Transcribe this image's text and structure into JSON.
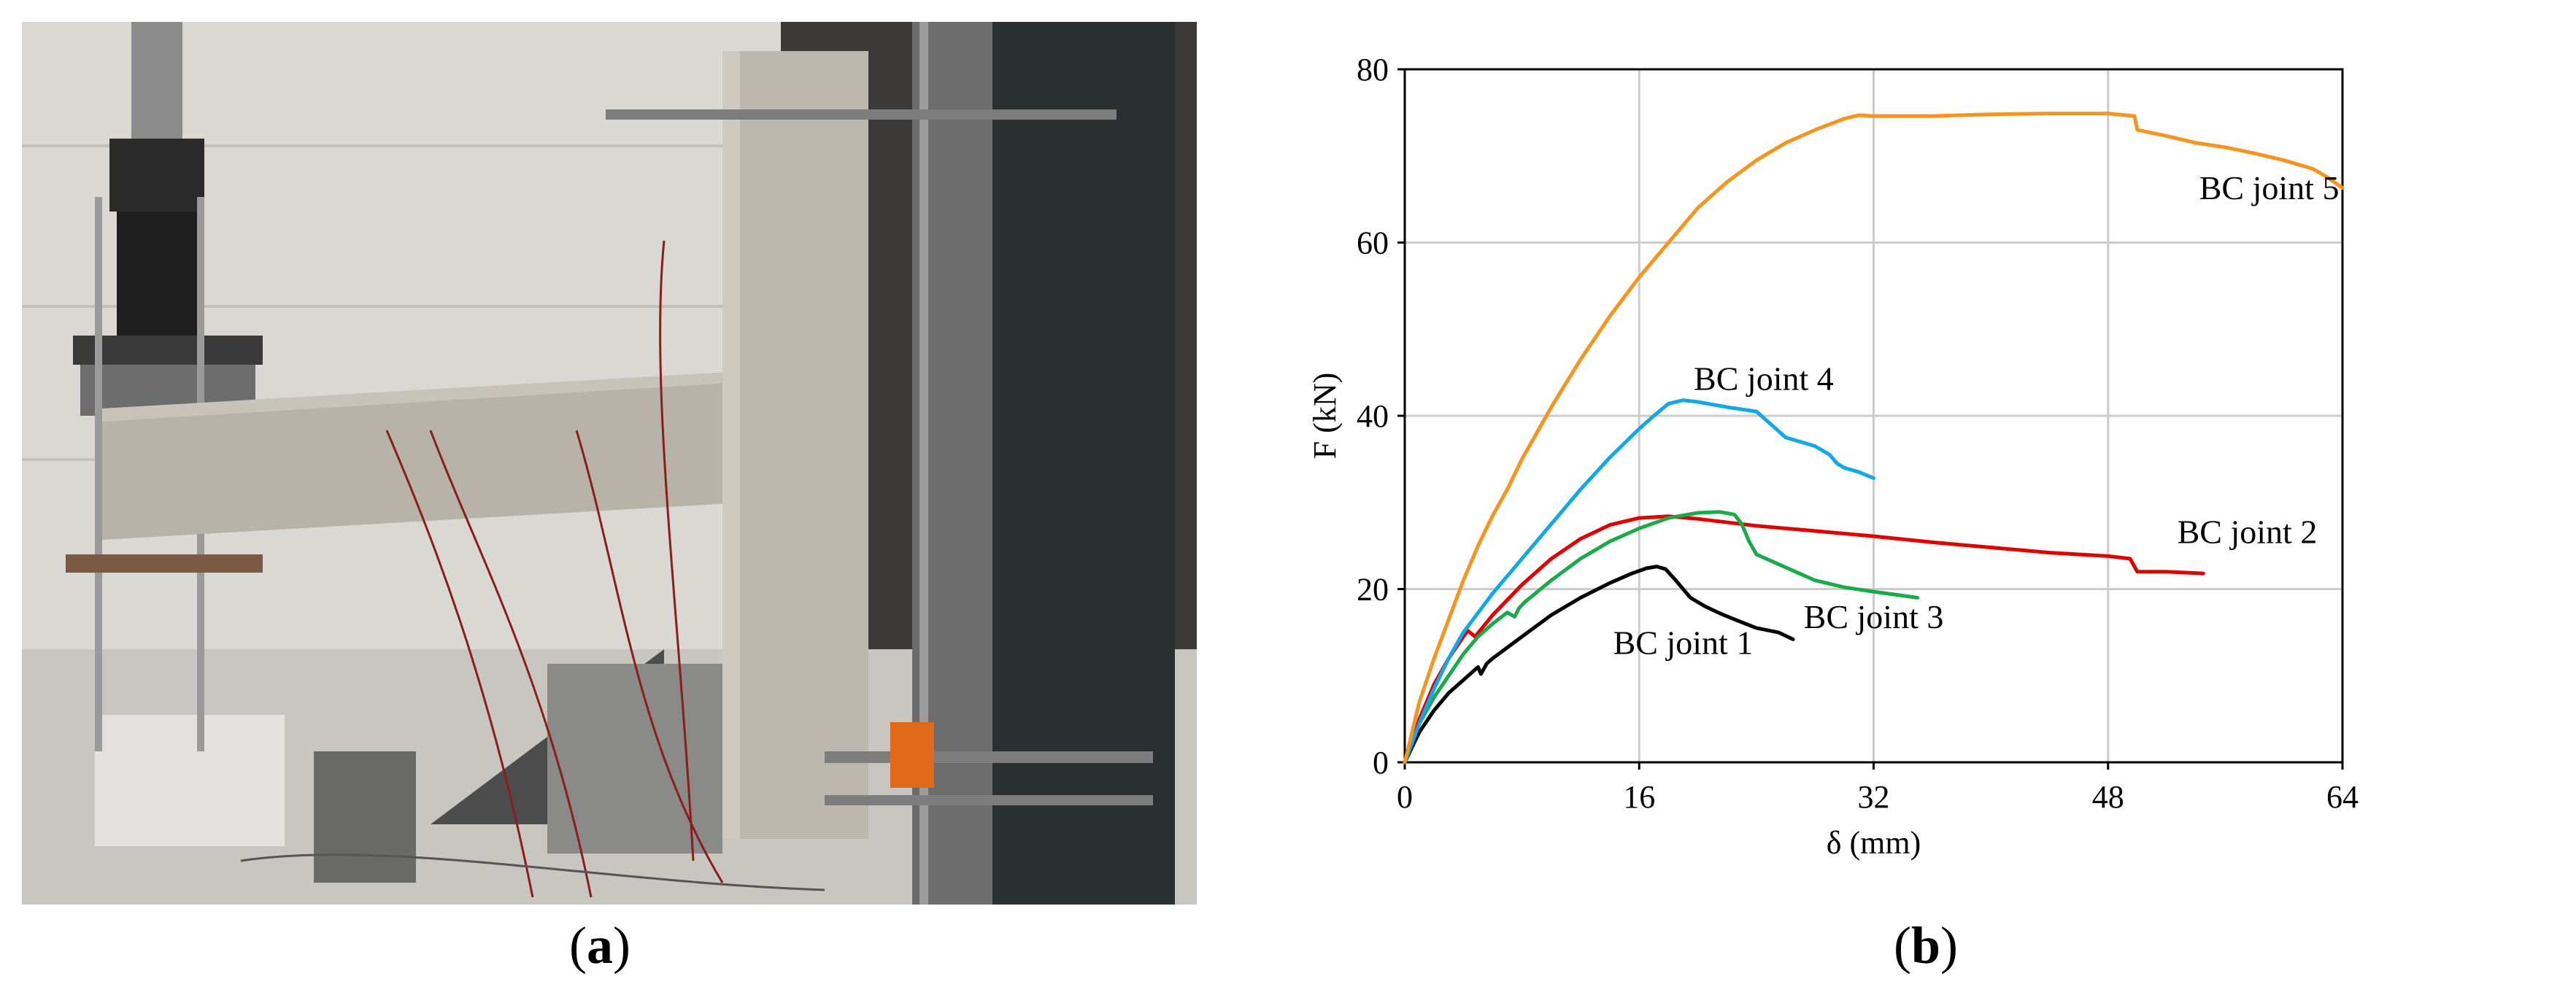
{
  "panels": {
    "a": {
      "open": "(",
      "letter": "a",
      "close": ")"
    },
    "b": {
      "open": "(",
      "letter": "b",
      "close": ")"
    }
  },
  "colors": {
    "bc1": "#000000",
    "bc2": "#e00000",
    "bc3": "#1aaa4a",
    "bc4": "#12a7e8",
    "bc5": "#f7941d",
    "grid": "#cccccc"
  },
  "chart_data": {
    "type": "line",
    "title": "",
    "xlabel": "δ (mm)",
    "ylabel": "F (kN)",
    "xlim": [
      0,
      64
    ],
    "ylim": [
      0,
      80
    ],
    "xticks": [
      0,
      16,
      32,
      48,
      64
    ],
    "yticks": [
      0,
      20,
      40,
      60,
      80
    ],
    "grid": true,
    "legend": "inline labels",
    "series": [
      {
        "name": "BC joint 1",
        "color": "#000000",
        "x": [
          0,
          1,
          2,
          3,
          4,
          5,
          5.2,
          5.6,
          6,
          8,
          10,
          12,
          14,
          15.5,
          16.5,
          17.2,
          17.8,
          18.5,
          19.5,
          20.5,
          21.5,
          22.5,
          24,
          25.5,
          26.5
        ],
        "y": [
          0,
          3.5,
          6,
          8,
          9.5,
          11,
          10.2,
          11.4,
          12,
          14.5,
          17,
          19,
          20.7,
          21.8,
          22.4,
          22.6,
          22.3,
          21,
          19,
          18,
          17.2,
          16.5,
          15.5,
          15,
          14.2
        ]
      },
      {
        "name": "BC joint 2",
        "color": "#e00000",
        "x": [
          0,
          1,
          2,
          3,
          4,
          4.3,
          4.8,
          6,
          8,
          10,
          12,
          14,
          16,
          18,
          20,
          24,
          28,
          32,
          36,
          40,
          44,
          48,
          49.5,
          49.8,
          50,
          52,
          54.5
        ],
        "y": [
          0,
          5,
          9,
          12,
          14.5,
          15.2,
          14.5,
          17,
          20.5,
          23.5,
          25.8,
          27.4,
          28.2,
          28.4,
          28.1,
          27.3,
          26.7,
          26.1,
          25.4,
          24.8,
          24.2,
          23.8,
          23.5,
          22.6,
          22,
          22,
          21.8
        ]
      },
      {
        "name": "BC joint 3",
        "color": "#1aaa4a",
        "x": [
          0,
          1,
          2,
          3,
          4,
          5,
          6,
          7,
          7.5,
          7.8,
          8.2,
          10,
          12,
          14,
          16,
          18,
          20,
          21.5,
          22.5,
          23,
          23.5,
          24,
          26,
          28,
          30,
          32,
          35
        ],
        "y": [
          0,
          4.5,
          7.5,
          10,
          12.5,
          14.5,
          16,
          17.3,
          16.8,
          17.8,
          18.5,
          21,
          23.5,
          25.5,
          27,
          28.2,
          28.8,
          28.9,
          28.6,
          27.5,
          25.5,
          24,
          22.5,
          21,
          20.2,
          19.7,
          19
        ]
      },
      {
        "name": "BC joint 4",
        "color": "#12a7e8",
        "x": [
          0,
          1,
          2,
          3,
          4,
          6,
          8,
          10,
          12,
          14,
          16,
          17,
          18,
          19,
          20,
          22,
          24,
          25,
          26,
          27,
          28,
          29,
          29.5,
          30,
          31,
          32
        ],
        "y": [
          0,
          4.5,
          8.5,
          12,
          15,
          19.5,
          23.5,
          27.5,
          31.5,
          35.2,
          38.5,
          40,
          41.4,
          41.8,
          41.6,
          41,
          40.5,
          39,
          37.5,
          37,
          36.5,
          35.5,
          34.5,
          34,
          33.5,
          32.8
        ]
      },
      {
        "name": "BC joint 5",
        "color": "#f7941d",
        "x": [
          0,
          1,
          2,
          3,
          4,
          5,
          6,
          7,
          8,
          10,
          12,
          14,
          16,
          18,
          20,
          22,
          24,
          26,
          28,
          30,
          31,
          32,
          34,
          36,
          40,
          44,
          48,
          49.8,
          50,
          52,
          54,
          56,
          58,
          60,
          62,
          63,
          64
        ],
        "y": [
          0,
          7,
          12,
          16.5,
          21,
          25,
          28.5,
          31.5,
          35,
          41,
          46.5,
          51.5,
          56,
          60,
          64,
          67,
          69.5,
          71.5,
          73,
          74.3,
          74.7,
          74.6,
          74.6,
          74.6,
          74.8,
          74.9,
          74.9,
          74.6,
          73,
          72.3,
          71.5,
          71,
          70.3,
          69.5,
          68.5,
          67.5,
          66.3
        ]
      }
    ]
  }
}
